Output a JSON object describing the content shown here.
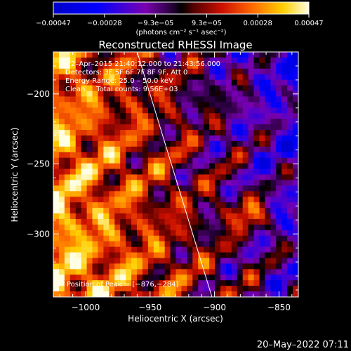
{
  "chart_data": {
    "type": "heatmap",
    "title": "Reconstructed RHESSI Image",
    "xlabel": "Heliocentric X (arcsec)",
    "ylabel": "Heliocentric Y (arcsec)",
    "xlim": [
      -1025,
      -835
    ],
    "ylim": [
      -345,
      -170
    ],
    "xticks": [
      -1000,
      -950,
      -900,
      -850
    ],
    "yticks": [
      -200,
      -250,
      -300
    ],
    "xtick_labels": [
      "−1000",
      "−950",
      "−900",
      "−850"
    ],
    "ytick_labels": [
      "−200",
      "−250",
      "−300"
    ],
    "colorbar": {
      "min": -0.00047,
      "max": 0.00047,
      "tick_labels": [
        "−0.00047",
        "−0.00028",
        "−9.3e−05",
        "9.3e−05",
        "0.00028",
        "0.00047"
      ],
      "unit_label": "(photons cm⁻² s⁻¹ asec⁻²)"
    },
    "annotations": [
      "2–Apr–2015 21:40:12.000 to 21:43:56.000",
      "Detectors: 3F 5F 6F 7F 8F 9F, Att 0",
      "Energy Range: 25.0 – 50.0 keV",
      "Clean     Total counts: 9.56E+03"
    ],
    "peak_label": "Position of Peak = [−876,−284]",
    "peak": [
      -876,
      -284
    ],
    "limb_line": {
      "x": [
        -960,
        -902
      ],
      "y": [
        -170,
        -345
      ]
    }
  },
  "footer": {
    "date": "20–May–2022 07:11"
  },
  "colors": {
    "background": "#000000",
    "text": "#ffffff",
    "limb": "#ffffff"
  }
}
